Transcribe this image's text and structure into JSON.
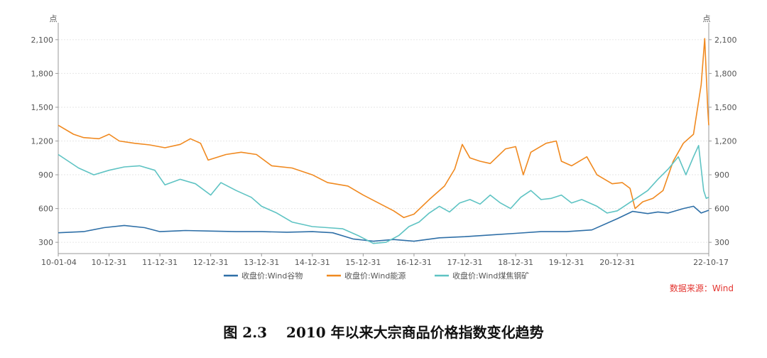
{
  "caption": "图 2.3　 2010 年以来大宗商品价格指数变化趋势",
  "source": "数据来源：Wind",
  "chart_data": {
    "type": "line",
    "y_unit_left": "点",
    "y_unit_right": "点",
    "ylim": [
      200,
      2200
    ],
    "yticks": [
      300,
      600,
      900,
      1200,
      1500,
      1800,
      2100
    ],
    "ytick_labels": [
      "300",
      "600",
      "900",
      "1,200",
      "1,500",
      "1,800",
      "2,100"
    ],
    "x_tick_labels": [
      "10-01-04",
      "10-12-31",
      "11-12-31",
      "12-12-31",
      "13-12-31",
      "14-12-31",
      "15-12-31",
      "16-12-31",
      "17-12-31",
      "18-12-31",
      "19-12-31",
      "20-12-31",
      "22-10-17"
    ],
    "x_tick_pos": [
      0,
      1,
      2,
      3,
      4,
      5,
      6,
      7,
      8,
      9,
      10,
      11,
      12.8
    ],
    "x_range": [
      0,
      12.8
    ],
    "grid": true,
    "legend": "bottom",
    "series": [
      {
        "name": "收盘价:Wind谷物",
        "color": "#2e6fa7",
        "points": [
          [
            0,
            385
          ],
          [
            0.5,
            395
          ],
          [
            0.9,
            430
          ],
          [
            1.3,
            450
          ],
          [
            1.7,
            430
          ],
          [
            2.0,
            395
          ],
          [
            2.5,
            405
          ],
          [
            3,
            400
          ],
          [
            3.5,
            395
          ],
          [
            4,
            395
          ],
          [
            4.5,
            390
          ],
          [
            5,
            395
          ],
          [
            5.4,
            385
          ],
          [
            5.8,
            330
          ],
          [
            6.2,
            310
          ],
          [
            6.6,
            325
          ],
          [
            7.0,
            310
          ],
          [
            7.5,
            340
          ],
          [
            8,
            350
          ],
          [
            8.5,
            365
          ],
          [
            9,
            380
          ],
          [
            9.5,
            395
          ],
          [
            10,
            395
          ],
          [
            10.5,
            410
          ],
          [
            11,
            510
          ],
          [
            11.3,
            575
          ],
          [
            11.6,
            555
          ],
          [
            11.8,
            570
          ],
          [
            12.0,
            560
          ],
          [
            12.3,
            600
          ],
          [
            12.5,
            620
          ],
          [
            12.65,
            560
          ],
          [
            12.8,
            585
          ]
        ]
      },
      {
        "name": "收盘价:Wind能源",
        "color": "#f0891f",
        "points": [
          [
            0,
            1340
          ],
          [
            0.3,
            1260
          ],
          [
            0.5,
            1230
          ],
          [
            0.8,
            1220
          ],
          [
            1.0,
            1260
          ],
          [
            1.2,
            1200
          ],
          [
            1.5,
            1180
          ],
          [
            1.8,
            1165
          ],
          [
            2.1,
            1140
          ],
          [
            2.4,
            1170
          ],
          [
            2.6,
            1220
          ],
          [
            2.8,
            1180
          ],
          [
            2.95,
            1030
          ],
          [
            3.3,
            1080
          ],
          [
            3.6,
            1100
          ],
          [
            3.9,
            1080
          ],
          [
            4.2,
            980
          ],
          [
            4.6,
            960
          ],
          [
            5.0,
            900
          ],
          [
            5.3,
            830
          ],
          [
            5.7,
            800
          ],
          [
            6.0,
            720
          ],
          [
            6.3,
            650
          ],
          [
            6.6,
            580
          ],
          [
            6.8,
            520
          ],
          [
            7.0,
            550
          ],
          [
            7.3,
            680
          ],
          [
            7.6,
            800
          ],
          [
            7.8,
            950
          ],
          [
            7.95,
            1170
          ],
          [
            8.1,
            1050
          ],
          [
            8.3,
            1020
          ],
          [
            8.5,
            1000
          ],
          [
            8.8,
            1130
          ],
          [
            9.0,
            1150
          ],
          [
            9.15,
            900
          ],
          [
            9.3,
            1100
          ],
          [
            9.6,
            1180
          ],
          [
            9.8,
            1200
          ],
          [
            9.9,
            1020
          ],
          [
            10.1,
            980
          ],
          [
            10.4,
            1060
          ],
          [
            10.6,
            900
          ],
          [
            10.9,
            820
          ],
          [
            11.1,
            830
          ],
          [
            11.25,
            780
          ],
          [
            11.35,
            600
          ],
          [
            11.5,
            660
          ],
          [
            11.7,
            690
          ],
          [
            11.9,
            760
          ],
          [
            12.1,
            1020
          ],
          [
            12.3,
            1180
          ],
          [
            12.5,
            1260
          ],
          [
            12.65,
            1700
          ],
          [
            12.72,
            2110
          ],
          [
            12.78,
            1480
          ],
          [
            12.8,
            1340
          ]
        ]
      },
      {
        "name": "收盘价:Wind煤焦钢矿",
        "color": "#5ec3c3",
        "points": [
          [
            0,
            1080
          ],
          [
            0.2,
            1020
          ],
          [
            0.4,
            960
          ],
          [
            0.7,
            900
          ],
          [
            1.0,
            940
          ],
          [
            1.3,
            970
          ],
          [
            1.6,
            980
          ],
          [
            1.9,
            940
          ],
          [
            2.1,
            810
          ],
          [
            2.4,
            860
          ],
          [
            2.7,
            820
          ],
          [
            3.0,
            720
          ],
          [
            3.2,
            830
          ],
          [
            3.5,
            760
          ],
          [
            3.8,
            700
          ],
          [
            4.0,
            620
          ],
          [
            4.3,
            560
          ],
          [
            4.6,
            480
          ],
          [
            5.0,
            440
          ],
          [
            5.3,
            430
          ],
          [
            5.6,
            420
          ],
          [
            5.9,
            360
          ],
          [
            6.2,
            290
          ],
          [
            6.45,
            300
          ],
          [
            6.7,
            360
          ],
          [
            6.9,
            440
          ],
          [
            7.1,
            480
          ],
          [
            7.3,
            560
          ],
          [
            7.5,
            620
          ],
          [
            7.7,
            570
          ],
          [
            7.9,
            650
          ],
          [
            8.1,
            680
          ],
          [
            8.3,
            640
          ],
          [
            8.5,
            720
          ],
          [
            8.7,
            650
          ],
          [
            8.9,
            600
          ],
          [
            9.1,
            700
          ],
          [
            9.3,
            760
          ],
          [
            9.5,
            680
          ],
          [
            9.7,
            690
          ],
          [
            9.9,
            720
          ],
          [
            10.1,
            650
          ],
          [
            10.3,
            680
          ],
          [
            10.6,
            620
          ],
          [
            10.8,
            560
          ],
          [
            11.0,
            580
          ],
          [
            11.2,
            640
          ],
          [
            11.4,
            700
          ],
          [
            11.6,
            760
          ],
          [
            11.8,
            860
          ],
          [
            12.0,
            950
          ],
          [
            12.2,
            1060
          ],
          [
            12.35,
            900
          ],
          [
            12.5,
            1060
          ],
          [
            12.6,
            1160
          ],
          [
            12.7,
            760
          ],
          [
            12.75,
            690
          ],
          [
            12.8,
            700
          ]
        ]
      }
    ]
  }
}
